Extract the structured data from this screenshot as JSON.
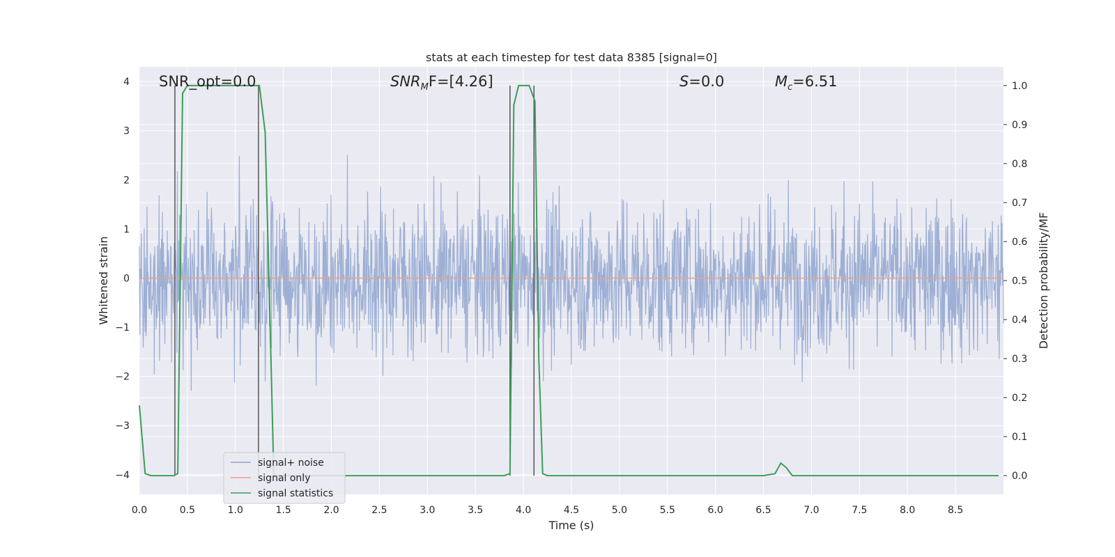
{
  "chart_data": {
    "type": "line",
    "title": "stats at each timestep for test data 8385 [signal=0]",
    "xlabel": "Time (s)",
    "ylabel": "Whitened strain",
    "y2label": "Detection probability/MF",
    "xlim": [
      0.0,
      9.0
    ],
    "ylim": [
      -4.4,
      4.3
    ],
    "y2lim": [
      -0.048,
      1.048
    ],
    "xticks": [
      "0.0",
      "0.5",
      "1.0",
      "1.5",
      "2.0",
      "2.5",
      "3.0",
      "3.5",
      "4.0",
      "4.5",
      "5.0",
      "5.5",
      "6.0",
      "6.5",
      "7.0",
      "7.5",
      "8.0",
      "8.5"
    ],
    "yticks": [
      "4",
      "3",
      "2",
      "1",
      "0",
      "−1",
      "−2",
      "−3",
      "−4"
    ],
    "y2ticks": [
      "1.0",
      "0.9",
      "0.8",
      "0.7",
      "0.6",
      "0.5",
      "0.4",
      "0.3",
      "0.2",
      "0.1",
      "0.0"
    ],
    "grid": true,
    "legend_position": "lower-left",
    "annotations": {
      "snr_opt": "SNR_opt=0.0",
      "snr_mf_main": "SNR",
      "snr_mf_sub": "M",
      "snr_mf_rest": "F=[4.26]",
      "s_main": "S",
      "s_rest": "=0.0",
      "mc_main": "M",
      "mc_sub": "c",
      "mc_rest": "=6.51"
    },
    "series": [
      {
        "name": "signal+ noise",
        "color": "#8fa4cf",
        "note_range": [
          -4.0,
          3.9
        ]
      },
      {
        "name": "signal only",
        "color": "#e8a58a",
        "x": [
          0.0,
          9.0
        ],
        "y": [
          0.0,
          0.0
        ]
      },
      {
        "name": "signal statistics",
        "color": "#3a9e57",
        "x": [
          0.0,
          0.06,
          0.12,
          0.2,
          0.3,
          0.36,
          0.4,
          0.45,
          0.5,
          0.6,
          0.8,
          1.0,
          1.2,
          1.25,
          1.31,
          1.37,
          1.4,
          1.5,
          2.0,
          2.5,
          3.0,
          3.5,
          3.8,
          3.86,
          3.9,
          3.95,
          4.0,
          4.06,
          4.12,
          4.16,
          4.2,
          4.25,
          4.3,
          4.5,
          5.0,
          5.5,
          6.0,
          6.5,
          6.62,
          6.68,
          6.74,
          6.8,
          7.0,
          7.5,
          8.0,
          8.5,
          8.95
        ],
        "y": [
          0.18,
          0.005,
          0.0,
          0.0,
          0.0,
          0.0,
          0.005,
          0.98,
          1.0,
          1.0,
          1.0,
          1.0,
          1.0,
          1.0,
          0.88,
          0.3,
          0.0,
          0.0,
          0.0,
          0.0,
          0.0,
          0.0,
          0.0,
          0.005,
          0.95,
          1.0,
          1.0,
          1.0,
          0.96,
          0.3,
          0.005,
          0.0,
          0.0,
          0.0,
          0.0,
          0.0,
          0.0,
          0.0,
          0.005,
          0.032,
          0.02,
          0.0,
          0.0,
          0.0,
          0.0,
          0.0,
          0.0
        ]
      }
    ],
    "vertical_markers_x": [
      0.37,
      1.24,
      3.86,
      4.11
    ]
  },
  "colors": {
    "plot_bg": "#eaeaf2",
    "grid": "#ffffff",
    "marker": "#555555"
  }
}
